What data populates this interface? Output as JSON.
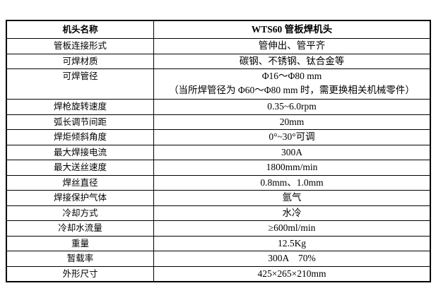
{
  "table": {
    "header": {
      "label": "机头名称",
      "value": "WTS60 管板焊机头"
    },
    "rows": [
      {
        "label": "管板连接形式",
        "value": "管伸出、管平齐"
      },
      {
        "label": "可焊材质",
        "value": "碳钢、不锈钢、钛合金等"
      },
      {
        "label": "可焊管径",
        "value": "Φ16～Φ80 mm",
        "note": "（当所焊管径为 Φ60～Φ80 mm 时，需更换相关机械零件）"
      },
      {
        "label": "焊枪旋转速度",
        "value": "0.35~6.0rpm"
      },
      {
        "label": "弧长调节间距",
        "value": "20mm"
      },
      {
        "label": "焊炬倾斜角度",
        "value": "0°~30°可调"
      },
      {
        "label": "最大焊接电流",
        "value": "300A"
      },
      {
        "label": "最大送丝速度",
        "value": "1800mm/min"
      },
      {
        "label": "焊丝直径",
        "value": "0.8mm、1.0mm"
      },
      {
        "label": "焊接保护气体",
        "value": "氩气"
      },
      {
        "label": "冷却方式",
        "value": "水冷"
      },
      {
        "label": "冷却水流量",
        "value": "≥600ml/min"
      },
      {
        "label": "重量",
        "value": "12.5Kg"
      },
      {
        "label": "暂载率",
        "value": "300A　70%"
      },
      {
        "label": "外形尺寸",
        "value": "425×265×210mm"
      }
    ]
  }
}
